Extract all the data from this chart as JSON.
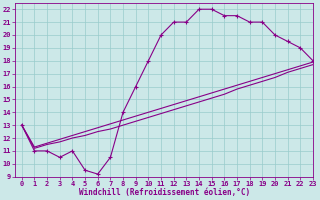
{
  "xlabel": "Windchill (Refroidissement éolien,°C)",
  "bg_color": "#cce8e8",
  "line_color": "#880088",
  "grid_color": "#99cccc",
  "xlim": [
    -0.5,
    23
  ],
  "ylim": [
    9,
    22.5
  ],
  "xticks": [
    0,
    1,
    2,
    3,
    4,
    5,
    6,
    7,
    8,
    9,
    10,
    11,
    12,
    13,
    14,
    15,
    16,
    17,
    18,
    19,
    20,
    21,
    22,
    23
  ],
  "yticks": [
    9,
    10,
    11,
    12,
    13,
    14,
    15,
    16,
    17,
    18,
    19,
    20,
    21,
    22
  ],
  "series1_x": [
    0,
    1,
    2,
    3,
    4,
    5,
    6,
    7,
    8,
    9,
    10,
    11,
    12,
    13,
    14,
    15,
    16,
    17,
    18,
    19,
    20,
    21,
    22,
    23
  ],
  "series1_y": [
    13,
    11,
    11,
    10.5,
    11,
    9.5,
    9.2,
    10.5,
    14,
    16,
    18,
    20,
    21,
    21,
    22,
    22,
    21.5,
    21.5,
    21,
    21,
    20,
    19.5,
    19,
    18
  ],
  "series2_x": [
    0,
    1,
    2,
    3,
    4,
    5,
    6,
    7,
    8,
    9,
    10,
    11,
    12,
    13,
    14,
    15,
    16,
    17,
    18,
    19,
    20,
    21,
    22,
    23
  ],
  "series2_y": [
    13,
    11.3,
    11.6,
    11.9,
    12.2,
    12.5,
    12.8,
    13.1,
    13.4,
    13.7,
    14.0,
    14.3,
    14.6,
    14.9,
    15.2,
    15.5,
    15.8,
    16.1,
    16.4,
    16.7,
    17.0,
    17.3,
    17.6,
    17.9
  ],
  "series3_x": [
    0,
    1,
    2,
    3,
    4,
    5,
    6,
    7,
    8,
    9,
    10,
    11,
    12,
    13,
    14,
    15,
    16,
    17,
    18,
    19,
    20,
    21,
    22,
    23
  ],
  "series3_y": [
    13,
    11.2,
    11.5,
    11.7,
    12.0,
    12.2,
    12.5,
    12.7,
    13.0,
    13.3,
    13.6,
    13.9,
    14.2,
    14.5,
    14.8,
    15.1,
    15.4,
    15.8,
    16.1,
    16.4,
    16.7,
    17.1,
    17.4,
    17.7
  ]
}
